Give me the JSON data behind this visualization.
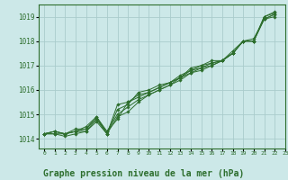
{
  "background_color": "#cce8e8",
  "grid_color": "#aacccc",
  "line_color": "#2d6e2d",
  "marker_color": "#2d6e2d",
  "xlabel": "Graphe pression niveau de la mer (hPa)",
  "xlabel_fontsize": 7,
  "xlim": [
    -0.5,
    23
  ],
  "ylim": [
    1013.6,
    1019.5
  ],
  "xticks": [
    0,
    1,
    2,
    3,
    4,
    5,
    6,
    7,
    8,
    9,
    10,
    11,
    12,
    13,
    14,
    15,
    16,
    17,
    18,
    19,
    20,
    21,
    22,
    23
  ],
  "yticks": [
    1014,
    1015,
    1016,
    1017,
    1018,
    1019
  ],
  "lines": [
    [
      1014.2,
      1014.3,
      1014.2,
      1014.3,
      1014.3,
      1014.8,
      1014.3,
      1014.8,
      1015.5,
      1015.8,
      1015.9,
      1016.1,
      1016.3,
      1016.5,
      1016.8,
      1016.9,
      1017.0,
      1017.2,
      1017.5,
      1018.0,
      1018.0,
      1019.0,
      1019.2
    ],
    [
      1014.2,
      1014.2,
      1014.2,
      1014.3,
      1014.5,
      1014.9,
      1014.3,
      1015.0,
      1015.3,
      1015.6,
      1015.8,
      1016.0,
      1016.2,
      1016.5,
      1016.9,
      1017.0,
      1017.2,
      1017.2,
      1017.6,
      1018.0,
      1018.1,
      1018.9,
      1019.1
    ],
    [
      1014.2,
      1014.3,
      1014.2,
      1014.4,
      1014.4,
      1014.9,
      1014.2,
      1015.4,
      1015.5,
      1015.7,
      1015.9,
      1016.1,
      1016.3,
      1016.6,
      1016.8,
      1017.0,
      1017.1,
      1017.2,
      1017.5,
      1018.0,
      1018.0,
      1019.0,
      1019.15
    ],
    [
      1014.2,
      1014.3,
      1014.2,
      1014.3,
      1014.4,
      1014.8,
      1014.2,
      1015.2,
      1015.4,
      1015.9,
      1016.0,
      1016.2,
      1016.3,
      1016.5,
      1016.7,
      1016.9,
      1017.1,
      1017.2,
      1017.5,
      1018.0,
      1018.0,
      1018.9,
      1019.1
    ],
    [
      1014.2,
      1014.2,
      1014.1,
      1014.2,
      1014.3,
      1014.7,
      1014.2,
      1014.9,
      1015.1,
      1015.5,
      1015.8,
      1016.0,
      1016.2,
      1016.4,
      1016.7,
      1016.8,
      1017.0,
      1017.2,
      1017.5,
      1018.0,
      1018.0,
      1018.9,
      1019.0
    ]
  ]
}
